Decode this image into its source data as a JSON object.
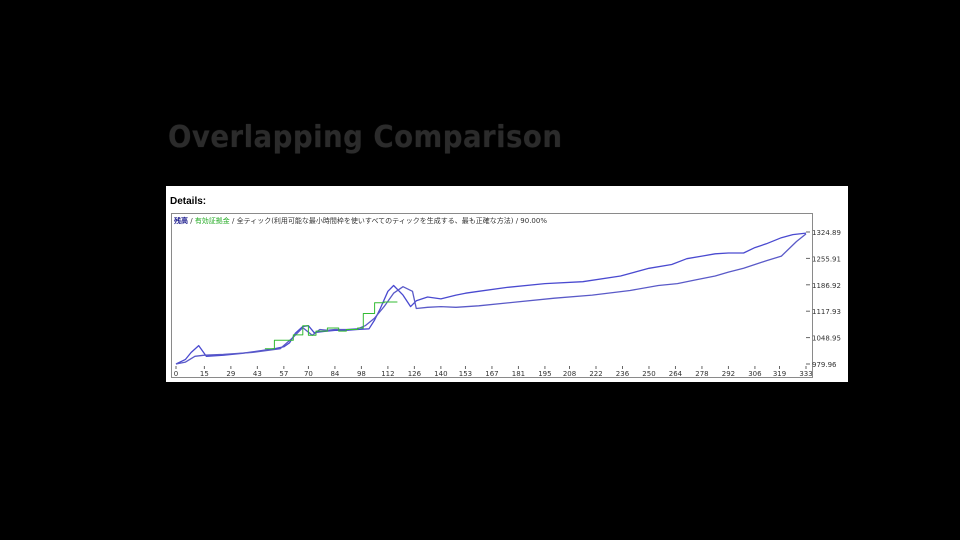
{
  "slide": {
    "title": "Overlapping Comparison"
  },
  "panel": {
    "details_label": "Details:"
  },
  "legend": {
    "series_a": "残高",
    "sep1": " / ",
    "series_b": "有効証拠金",
    "sep2": " / ",
    "description": "全ティック(利用可能な最小時間枠を使いすべてのティックを生成する、最も正確な方法)",
    "sep3": " / ",
    "quality": "90.00%"
  },
  "colors": {
    "series_1": "#4a4ad0",
    "series_2": "#5a5ac8",
    "series_3": "#33bb33",
    "frame": "#8a8a8a"
  },
  "chart_data": {
    "type": "line",
    "x_ticks": [
      "0",
      "15",
      "29",
      "43",
      "57",
      "70",
      "84",
      "98",
      "112",
      "126",
      "140",
      "153",
      "167",
      "181",
      "195",
      "208",
      "222",
      "236",
      "250",
      "264",
      "278",
      "292",
      "306",
      "319",
      "333"
    ],
    "y_tick_labels": [
      "1324.89",
      "1255.91",
      "1186.92",
      "1117.93",
      "1048.95",
      "979.96"
    ],
    "ylim": [
      979.96,
      1324.89
    ],
    "xlim": [
      0,
      333
    ],
    "series": [
      {
        "color": "#4a4ad0",
        "x": [
          0,
          5,
          8,
          12,
          16,
          25,
          35,
          45,
          52,
          57,
          60,
          63,
          67,
          70,
          73,
          78,
          84,
          90,
          96,
          102,
          105,
          108,
          112,
          115,
          120,
          124,
          127,
          133,
          140,
          148,
          153,
          160,
          175,
          195,
          215,
          235,
          250,
          262,
          270,
          278,
          285,
          292,
          300,
          306,
          312,
          320,
          326,
          333
        ],
        "y": [
          979.96,
          992,
          1010,
          1028,
          1000,
          1003,
          1008,
          1015,
          1020,
          1025,
          1035,
          1060,
          1078,
          1080,
          1062,
          1065,
          1068,
          1068,
          1070,
          1072,
          1095,
          1125,
          1170,
          1185,
          1160,
          1130,
          1145,
          1155,
          1150,
          1160,
          1165,
          1170,
          1180,
          1190,
          1195,
          1210,
          1230,
          1240,
          1255,
          1262,
          1268,
          1270,
          1270,
          1284,
          1294,
          1310,
          1318,
          1322
        ]
      },
      {
        "color": "#5a5ac8",
        "x": [
          0,
          5,
          10,
          15,
          25,
          40,
          55,
          62,
          67,
          72,
          76,
          80,
          84,
          90,
          96,
          100,
          105,
          110,
          115,
          120,
          125,
          127,
          133,
          140,
          148,
          160,
          180,
          200,
          220,
          240,
          255,
          265,
          275,
          285,
          292,
          300,
          306,
          312,
          320,
          328,
          333
        ],
        "y": [
          979.96,
          985,
          1000,
          1003,
          1005,
          1010,
          1020,
          1050,
          1075,
          1055,
          1070,
          1068,
          1070,
          1070,
          1072,
          1080,
          1100,
          1130,
          1165,
          1182,
          1170,
          1125,
          1128,
          1130,
          1128,
          1132,
          1142,
          1152,
          1160,
          1172,
          1185,
          1190,
          1200,
          1210,
          1220,
          1230,
          1240,
          1250,
          1262,
          1300,
          1320
        ]
      },
      {
        "color": "#33bb33",
        "x": [
          47,
          52,
          52,
          62,
          62,
          67,
          67,
          70,
          70,
          74,
          74,
          80,
          80,
          86,
          86,
          90,
          90,
          96,
          96,
          99,
          99,
          105,
          105,
          110,
          110,
          117
        ],
        "y": [
          1020,
          1020,
          1042,
          1042,
          1056,
          1056,
          1080,
          1080,
          1055,
          1055,
          1066,
          1066,
          1074,
          1074,
          1066,
          1066,
          1070,
          1070,
          1074,
          1074,
          1112,
          1112,
          1140,
          1140,
          1142,
          1142
        ]
      }
    ]
  }
}
